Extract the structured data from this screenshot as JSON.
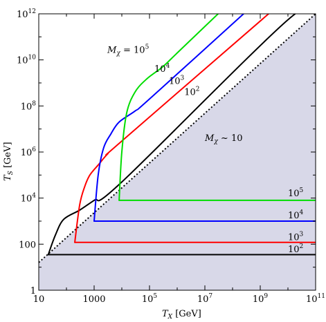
{
  "chart_data": {
    "type": "line",
    "xscale": "log",
    "yscale": "log",
    "xlim": [
      10,
      100000000000.0
    ],
    "ylim": [
      1,
      1000000000000.0
    ],
    "xlabel_main": "T",
    "xlabel_sub": "X",
    "xlabel_unit": " [GeV]",
    "ylabel_main": "T",
    "ylabel_sub": "S",
    "ylabel_unit": " [GeV]",
    "xticks": [
      {
        "value": 10,
        "base": "10",
        "exp": ""
      },
      {
        "value": 1000,
        "base": "1000",
        "exp": ""
      },
      {
        "value": 100000.0,
        "base": "10",
        "exp": "5"
      },
      {
        "value": 10000000.0,
        "base": "10",
        "exp": "7"
      },
      {
        "value": 1000000000.0,
        "base": "10",
        "exp": "9"
      },
      {
        "value": 100000000000.0,
        "base": "10",
        "exp": "11"
      }
    ],
    "yticks": [
      {
        "value": 1,
        "base": "1",
        "exp": ""
      },
      {
        "value": 100,
        "base": "100",
        "exp": ""
      },
      {
        "value": 10000.0,
        "base": "10",
        "exp": "4"
      },
      {
        "value": 1000000.0,
        "base": "10",
        "exp": "6"
      },
      {
        "value": 100000000.0,
        "base": "10",
        "exp": "8"
      },
      {
        "value": 10000000000.0,
        "base": "10",
        "exp": "10"
      },
      {
        "value": 1000000000000.0,
        "base": "10",
        "exp": "12"
      }
    ],
    "shaded_region": {
      "color": "#d8d8e8",
      "boundary": [
        [
          10,
          1
        ],
        [
          10,
          16
        ],
        [
          100000000000.0,
          1000000000000.0
        ],
        [
          100000000000.0,
          1
        ]
      ]
    },
    "dotted_line": {
      "color": "#000000",
      "points": [
        [
          10,
          16
        ],
        [
          100000000000.0,
          1000000000000.0
        ]
      ]
    },
    "series": [
      {
        "name": "10^2",
        "color": "#000000",
        "points": [
          [
            22,
            35
          ],
          [
            100000000000.0,
            35
          ]
        ]
      },
      {
        "name": "10^3",
        "color": "#ff0000",
        "points": [
          [
            200,
            120
          ],
          [
            100000000000.0,
            120
          ]
        ]
      },
      {
        "name": "10^4",
        "color": "#0000ff",
        "points": [
          [
            1000,
            1000
          ],
          [
            100000000000.0,
            1000
          ]
        ]
      },
      {
        "name": "10^5",
        "color": "#00dd00",
        "points": [
          [
            8000,
            8000
          ],
          [
            100000000000.0,
            8000
          ]
        ]
      },
      {
        "name": "M_X = 10^2 curve",
        "color": "#000000",
        "points": [
          [
            22,
            35
          ],
          [
            40,
            250
          ],
          [
            80,
            1200
          ],
          [
            300,
            3000
          ],
          [
            1000,
            8000
          ],
          [
            10000.0,
            50000.0
          ],
          [
            10000000000.0,
            550000000000.0
          ],
          [
            100000000000.0,
            1000000000000.0
          ]
        ]
      },
      {
        "name": "M_X = 10^3 curve",
        "color": "#ff0000",
        "points": [
          [
            200,
            120
          ],
          [
            300,
            5000
          ],
          [
            450,
            30000.0
          ],
          [
            700,
            100000.0
          ],
          [
            1500,
            300000.0
          ],
          [
            3000.0,
            800000.0
          ],
          [
            10000.0,
            3000000.0
          ],
          [
            2000000000.0,
            1000000000000.0
          ]
        ]
      },
      {
        "name": "M_X = 10^4 curve",
        "color": "#0000ff",
        "points": [
          [
            1000,
            1000
          ],
          [
            1400,
            100000.0
          ],
          [
            2200,
            1500000.0
          ],
          [
            4000,
            6000000.0
          ],
          [
            8000,
            20000000.0
          ],
          [
            30000.0,
            60000000.0
          ],
          [
            100000.0,
            200000000.0
          ],
          [
            250000000.0,
            1000000000000.0
          ]
        ]
      },
      {
        "name": "M_X = 10^5 curve",
        "color": "#00dd00",
        "points": [
          [
            8000,
            8000
          ],
          [
            10000.0,
            1000000.0
          ],
          [
            15000.0,
            50000000.0
          ],
          [
            30000.0,
            400000000.0
          ],
          [
            80000.0,
            1500000000.0
          ],
          [
            300000.0,
            5000000000.0
          ],
          [
            1000000.0,
            20000000000.0
          ],
          [
            30000000.0,
            1000000000000.0
          ]
        ]
      }
    ],
    "annotations": [
      {
        "id": "mx-label",
        "text": "M",
        "sub": "χ",
        "tail": " = 10",
        "exp": "5",
        "x": 3000,
        "y": 20000000000.0
      },
      {
        "id": "ann-top-1e4",
        "text": "10",
        "exp": "4",
        "x": 150000.0,
        "y": 3000000000.0
      },
      {
        "id": "ann-top-1e3",
        "text": "10",
        "exp": "3",
        "x": 500000.0,
        "y": 900000000.0
      },
      {
        "id": "ann-top-1e2",
        "text": "10",
        "exp": "2",
        "x": 1800000.0,
        "y": 300000000.0
      },
      {
        "id": "mx-sim-10",
        "text": "M",
        "sub": "χ",
        "tail": " ~ 10",
        "exp": "",
        "x": 10000000.0,
        "y": 3000000.0
      },
      {
        "id": "ann-right-1e5",
        "text": "10",
        "exp": "5",
        "x": 10000000000.0,
        "y": 12000.0
      },
      {
        "id": "ann-right-1e4",
        "text": "10",
        "exp": "4",
        "x": 10000000000.0,
        "y": 1300.0
      },
      {
        "id": "ann-right-1e3",
        "text": "10",
        "exp": "3",
        "x": 10000000000.0,
        "y": 150
      },
      {
        "id": "ann-right-1e2",
        "text": "10",
        "exp": "2",
        "x": 10000000000.0,
        "y": 45
      }
    ]
  }
}
